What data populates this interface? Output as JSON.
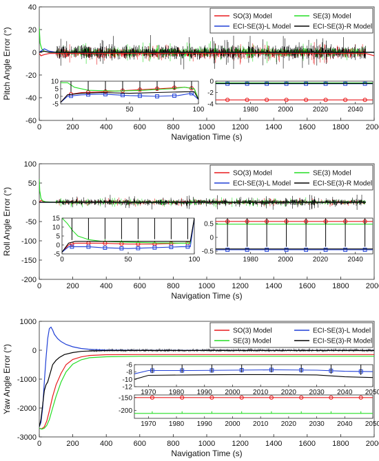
{
  "chart_data": [
    {
      "type": "line",
      "ylabel": "Pitch Angle Error (°)",
      "xlabel": "Navigation Time (s)",
      "xlim": [
        0,
        2000
      ],
      "ylim": [
        -60,
        40
      ],
      "xticks": [
        0,
        200,
        400,
        600,
        800,
        1000,
        1200,
        1400,
        1600,
        1800,
        2000
      ],
      "yticks": [
        40,
        20,
        0,
        -20,
        -40,
        -60
      ],
      "legend": {
        "location": "top-right",
        "entries": [
          "SO(3) Model",
          "SE(3) Model",
          "ECI-SE(3)-L Model",
          "ECI-SE(3)-R Model"
        ]
      },
      "series": [
        {
          "name": "SO(3) Model",
          "color": "#e8191b",
          "x": [
            0,
            10,
            30,
            60,
            100,
            300,
            600,
            1000,
            1500,
            1950,
            2000
          ],
          "y": [
            -1,
            -3,
            -2,
            -1,
            -1,
            -1,
            -1,
            -1,
            -1,
            -1,
            -3
          ]
        },
        {
          "name": "SE(3) Model",
          "color": "#22dd22",
          "x": [
            0,
            5,
            15,
            30,
            60,
            100,
            1000,
            1950,
            2000
          ],
          "y": [
            22,
            8,
            3,
            1,
            0,
            0,
            0,
            0,
            0
          ]
        },
        {
          "name": "ECI-SE(3)-L Model",
          "color": "#1f3fd6",
          "x": [
            0,
            30,
            60,
            100,
            1000,
            1950,
            2000
          ],
          "y": [
            0,
            3,
            1,
            0,
            0,
            0,
            0
          ]
        },
        {
          "name": "ECI-SE(3)-R Model",
          "color": "#000000",
          "x": [
            0,
            30,
            60,
            100,
            1000,
            1950,
            2000
          ],
          "y": [
            0,
            1,
            0,
            0,
            0,
            0,
            0
          ]
        }
      ],
      "insets": [
        {
          "xlim": [
            0,
            100
          ],
          "ylim": [
            -5,
            10
          ],
          "xticks": [
            50,
            100
          ],
          "yticks": [
            10,
            5,
            0,
            -5
          ],
          "series": [
            {
              "name": "SO(3) Model",
              "color": "#e8191b",
              "x": [
                0,
                5,
                15,
                30,
                50,
                70,
                90,
                97,
                100
              ],
              "y": [
                -4,
                1,
                2.5,
                3,
                4,
                5,
                6,
                5,
                -2
              ]
            },
            {
              "name": "SE(3) Model",
              "color": "#22dd22",
              "x": [
                0,
                5,
                10,
                20,
                40,
                60,
                80,
                90,
                97,
                100
              ],
              "y": [
                9,
                9,
                6,
                4,
                3.5,
                4,
                5,
                6,
                5,
                -2
              ]
            },
            {
              "name": "ECI-SE(3)-L Model",
              "color": "#1f3fd6",
              "x": [
                0,
                5,
                15,
                30,
                50,
                70,
                85,
                95,
                100
              ],
              "y": [
                -4,
                0,
                1,
                1.5,
                0.5,
                0,
                0.5,
                2,
                -2
              ]
            },
            {
              "name": "ECI-SE(3)-R Model",
              "color": "#000000",
              "x": [
                0,
                5,
                15,
                30,
                50,
                70,
                90,
                97,
                100
              ],
              "y": [
                -4,
                1,
                2,
                2.5,
                2,
                2.5,
                3,
                3,
                -2
              ]
            }
          ]
        },
        {
          "xlim": [
            1960,
            2050
          ],
          "ylim": [
            -4,
            0
          ],
          "xticks": [
            1980,
            2000,
            2020,
            2040
          ],
          "yticks": [
            0,
            -2,
            -4
          ],
          "series": [
            {
              "name": "SO(3) Model",
              "color": "#e8191b",
              "x": [
                1960,
                2050
              ],
              "y": [
                -3.3,
                -3.3
              ]
            },
            {
              "name": "SE(3) Model",
              "color": "#22dd22",
              "x": [
                1960,
                2050
              ],
              "y": [
                -0.3,
                -0.3
              ]
            },
            {
              "name": "ECI-SE(3)-L Model",
              "color": "#1f3fd6",
              "x": [
                1960,
                2050
              ],
              "y": [
                -0.45,
                -0.45
              ]
            },
            {
              "name": "ECI-SE(3)-R Model",
              "color": "#000000",
              "x": [
                1960,
                2050
              ],
              "y": [
                -0.4,
                -0.4
              ]
            }
          ]
        }
      ]
    },
    {
      "type": "line",
      "ylabel": "Roll Angle Error (°)",
      "xlabel": "Navigation Time (s)",
      "xlim": [
        0,
        2000
      ],
      "ylim": [
        -200,
        100
      ],
      "xticks": [
        0,
        200,
        400,
        600,
        800,
        1000,
        1200,
        1400,
        1600,
        1800,
        2000
      ],
      "yticks": [
        100,
        50,
        0,
        -50,
        -100,
        -150,
        -200
      ],
      "legend": {
        "location": "top-right",
        "entries": [
          "SO(3) Model",
          "SE(3) Model",
          "ECI-SE(3)-L Model",
          "ECI-SE(3)-R Model"
        ]
      },
      "series": [
        {
          "name": "SO(3) Model",
          "color": "#e8191b",
          "x": [
            0,
            10,
            30,
            100,
            1950
          ],
          "y": [
            0,
            5,
            1,
            0,
            0
          ]
        },
        {
          "name": "SE(3) Model",
          "color": "#22dd22",
          "x": [
            0,
            3,
            10,
            20,
            40,
            100,
            1950
          ],
          "y": [
            60,
            30,
            10,
            4,
            1,
            0,
            0
          ]
        },
        {
          "name": "ECI-SE(3)-L Model",
          "color": "#1f3fd6",
          "x": [
            0,
            100,
            1950
          ],
          "y": [
            0,
            0,
            0
          ]
        },
        {
          "name": "ECI-SE(3)-R Model",
          "color": "#000000",
          "x": [
            0,
            100,
            1950
          ],
          "y": [
            0,
            0,
            0
          ]
        }
      ],
      "insets": [
        {
          "xlim": [
            0,
            100
          ],
          "ylim": [
            -5,
            15
          ],
          "xticks": [
            0,
            50,
            100
          ],
          "yticks": [
            15,
            10,
            5,
            0,
            -5
          ],
          "series": [
            {
              "name": "SO(3) Model",
              "color": "#e8191b",
              "x": [
                0,
                5,
                10,
                20,
                30,
                50,
                70,
                90,
                97,
                100
              ],
              "y": [
                -4,
                0,
                1,
                1,
                1,
                0.5,
                0.5,
                1,
                1,
                15
              ]
            },
            {
              "name": "SE(3) Model",
              "color": "#22dd22",
              "x": [
                0,
                4,
                8,
                12,
                20,
                30,
                50,
                70,
                90,
                97,
                100
              ],
              "y": [
                15,
                12,
                8,
                5,
                3,
                2,
                1.5,
                1.2,
                1,
                1,
                15
              ]
            },
            {
              "name": "ECI-SE(3)-L Model",
              "color": "#1f3fd6",
              "x": [
                0,
                5,
                10,
                20,
                30,
                50,
                70,
                90,
                97,
                100
              ],
              "y": [
                -4,
                -1,
                -1,
                -1,
                -1.5,
                -2,
                -1.5,
                -1,
                -1,
                15
              ]
            },
            {
              "name": "ECI-SE(3)-R Model",
              "color": "#000000",
              "x": [
                0,
                5,
                10,
                20,
                30,
                50,
                70,
                90,
                97,
                100
              ],
              "y": [
                -4,
                1,
                2,
                2,
                2,
                2,
                2,
                2,
                2,
                15
              ]
            }
          ]
        },
        {
          "xlim": [
            1960,
            2050
          ],
          "ylim": [
            -0.6,
            0.7
          ],
          "xticks": [
            1980,
            2000,
            2020,
            2040
          ],
          "yticks": [
            0.5,
            0,
            -0.5
          ],
          "series": [
            {
              "name": "SO(3) Model",
              "color": "#e8191b",
              "x": [
                1960,
                2050
              ],
              "y": [
                0.58,
                0.58
              ]
            },
            {
              "name": "SE(3) Model",
              "color": "#22dd22",
              "x": [
                1960,
                2050
              ],
              "y": [
                0.48,
                0.48
              ]
            },
            {
              "name": "ECI-SE(3)-L Model",
              "color": "#1f3fd6",
              "x": [
                1960,
                2050
              ],
              "y": [
                -0.45,
                -0.45
              ]
            },
            {
              "name": "ECI-SE(3)-R Model",
              "color": "#000000",
              "x": [
                1960,
                2050
              ],
              "y": [
                -0.42,
                -0.42
              ]
            }
          ]
        }
      ]
    },
    {
      "type": "line",
      "ylabel": "Yaw Angle Error (°)",
      "xlabel": "Navigation Time (s)",
      "xlim": [
        0,
        2000
      ],
      "ylim": [
        -3000,
        1000
      ],
      "xticks": [
        0,
        200,
        400,
        600,
        800,
        1000,
        1200,
        1400,
        1600,
        1800,
        2000
      ],
      "yticks": [
        1000,
        0,
        -1000,
        -2000,
        -3000
      ],
      "legend": {
        "location": "top-right",
        "entries": [
          "SO(3) Model",
          "ECI-SE(3)-L Model",
          "SE(3) Model",
          "ECI-SE(3)-R Model"
        ]
      },
      "series": [
        {
          "name": "SO(3) Model",
          "color": "#e8191b",
          "x": [
            0,
            15,
            30,
            45,
            60,
            80,
            100,
            130,
            160,
            200,
            250,
            300,
            400,
            600,
            1000,
            2000
          ],
          "y": [
            -2700,
            -2720,
            -2650,
            -2450,
            -2100,
            -1600,
            -1200,
            -800,
            -500,
            -320,
            -230,
            -180,
            -155,
            -150,
            -150,
            -150
          ]
        },
        {
          "name": "SE(3) Model",
          "color": "#22dd22",
          "x": [
            0,
            15,
            30,
            45,
            60,
            80,
            100,
            130,
            160,
            200,
            250,
            300,
            400,
            600,
            1000,
            2000
          ],
          "y": [
            -2700,
            -2730,
            -2700,
            -2600,
            -2400,
            -2000,
            -1600,
            -1100,
            -750,
            -480,
            -330,
            -260,
            -225,
            -210,
            -210,
            -210
          ]
        },
        {
          "name": "ECI-SE(3)-L Model",
          "color": "#1f3fd6",
          "x": [
            0,
            10,
            20,
            30,
            40,
            50,
            60,
            70,
            80,
            90,
            110,
            130,
            160,
            200,
            250,
            300,
            400,
            600,
            1000,
            2000
          ],
          "y": [
            -2650,
            -2500,
            -2000,
            -1100,
            -300,
            400,
            750,
            800,
            700,
            550,
            400,
            300,
            200,
            120,
            60,
            30,
            5,
            -5,
            -8,
            -8
          ]
        },
        {
          "name": "ECI-SE(3)-R Model",
          "color": "#000000",
          "x": [
            0,
            10,
            20,
            30,
            40,
            50,
            60,
            70,
            80,
            100,
            120,
            150,
            200,
            250,
            300,
            400,
            600,
            1000,
            2000
          ],
          "y": [
            -2650,
            -2400,
            -1900,
            -1400,
            -1200,
            -1100,
            -900,
            -700,
            -500,
            -350,
            -250,
            -150,
            -80,
            -40,
            -25,
            -12,
            -9,
            -9,
            -9
          ]
        }
      ],
      "insets": [
        {
          "xlim": [
            1965,
            2050
          ],
          "ylim": [
            -12,
            -6
          ],
          "xticks": [
            1970,
            1980,
            1990,
            2000,
            2010,
            2020,
            2030,
            2040,
            2050
          ],
          "yticks": [
            -6,
            -8,
            -10,
            -12
          ],
          "series": [
            {
              "name": "ECI-SE(3)-L Model",
              "color": "#1f3fd6",
              "x": [
                1965,
                1970,
                1985,
                2000,
                2015,
                2030,
                2040,
                2050
              ],
              "y": [
                -8.5,
                -7.6,
                -7.6,
                -7.5,
                -7.4,
                -7.5,
                -7.8,
                -7.9
              ]
            },
            {
              "name": "ECI-SE(3)-R Model",
              "color": "#000000",
              "x": [
                1965,
                1970,
                1985,
                2000,
                2015,
                2030,
                2040,
                2050
              ],
              "y": [
                -10,
                -8.9,
                -8.8,
                -8.7,
                -8.7,
                -8.8,
                -9.3,
                -9.5
              ]
            }
          ]
        },
        {
          "xlim": [
            1965,
            2050
          ],
          "ylim": [
            -230,
            -140
          ],
          "xticks": [
            1970,
            1980,
            1990,
            2000,
            2010,
            2020,
            2030,
            2040,
            2050
          ],
          "yticks": [
            -150,
            -200
          ],
          "series": [
            {
              "name": "SO(3) Model",
              "color": "#e8191b",
              "x": [
                1965,
                2050
              ],
              "y": [
                -150,
                -150
              ]
            },
            {
              "name": "SE(3) Model",
              "color": "#22dd22",
              "x": [
                1965,
                2050
              ],
              "y": [
                -211,
                -211
              ]
            }
          ]
        }
      ]
    }
  ]
}
